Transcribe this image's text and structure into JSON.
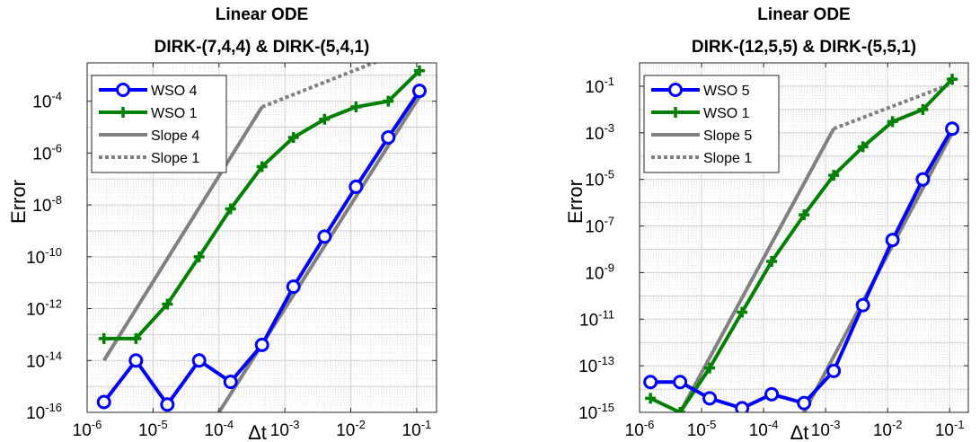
{
  "chart_data": [
    {
      "type": "line",
      "title": [
        "Linear ODE",
        "DIRK-(7,4,4) & DIRK-(5,4,1)"
      ],
      "xlabel": "Δt",
      "ylabel": "Error",
      "xscale": "log",
      "yscale": "log",
      "xlim": [
        1e-06,
        0.2
      ],
      "ylim": [
        1e-16,
        0.003
      ],
      "xticks": [
        1e-06,
        1e-05,
        0.0001,
        0.001,
        0.01,
        0.1
      ],
      "xtick_labels": [
        [
          "10",
          "-6"
        ],
        [
          "10",
          "-5"
        ],
        [
          "10",
          "-4"
        ],
        [
          "10",
          "-3"
        ],
        [
          "10",
          "-2"
        ],
        [
          "10",
          "-1"
        ]
      ],
      "yticks": [
        1e-16,
        1e-14,
        1e-12,
        1e-10,
        1e-08,
        1e-06,
        0.0001
      ],
      "ytick_labels": [
        [
          "10",
          "-16"
        ],
        [
          "10",
          "-14"
        ],
        [
          "10",
          "-12"
        ],
        [
          "10",
          "-10"
        ],
        [
          "10",
          "-8"
        ],
        [
          "10",
          "-6"
        ],
        [
          "10",
          "-4"
        ]
      ],
      "grid": true,
      "legend_position": "top-left",
      "series": [
        {
          "name": "WSO 4",
          "color": "#0000ff",
          "marker": "circle",
          "dash": "solid",
          "x": [
            1.8e-06,
            5.5e-06,
            1.65e-05,
            5e-05,
            0.00015,
            0.00045,
            0.00135,
            0.004,
            0.012,
            0.037,
            0.11
          ],
          "y": [
            2.5e-16,
            1e-14,
            2e-16,
            1e-14,
            1.5e-15,
            4e-14,
            7e-12,
            6e-10,
            5e-08,
            4e-06,
            0.00025
          ]
        },
        {
          "name": "WSO 1",
          "color": "#008000",
          "marker": "plus",
          "dash": "solid",
          "x": [
            1.8e-06,
            5.5e-06,
            1.65e-05,
            5e-05,
            0.00015,
            0.00045,
            0.00135,
            0.004,
            0.012,
            0.037,
            0.11
          ],
          "y": [
            7e-14,
            7e-14,
            1.5e-12,
            1e-10,
            7e-09,
            3e-07,
            4e-06,
            2e-05,
            6e-05,
            0.0001,
            0.0015
          ]
        },
        {
          "name": "Slope 4",
          "color": "#808080",
          "marker": "none",
          "dash": "solid",
          "segments": [
            {
              "x": [
                1.8e-06,
                0.00045
              ],
              "y": [
                1e-14,
                6e-05
              ]
            },
            {
              "x": [
                0.0001,
                0.11
              ],
              "y": [
                1e-16,
                0.00015
              ]
            }
          ]
        },
        {
          "name": "Slope 1",
          "color": "#808080",
          "marker": "none",
          "dash": "dot",
          "x": [
            0.00045,
            0.11
          ],
          "y": [
            6e-05,
            0.015
          ]
        }
      ]
    },
    {
      "type": "line",
      "title": [
        "Linear ODE",
        "DIRK-(12,5,5) & DIRK-(5,5,1)"
      ],
      "xlabel": "Δt",
      "ylabel": "Error",
      "xscale": "log",
      "yscale": "log",
      "xlim": [
        1e-06,
        0.2
      ],
      "ylim": [
        1e-15,
        1
      ],
      "xticks": [
        1e-06,
        1e-05,
        0.0001,
        0.001,
        0.01,
        0.1
      ],
      "xtick_labels": [
        [
          "10",
          "-6"
        ],
        [
          "10",
          "-5"
        ],
        [
          "10",
          "-4"
        ],
        [
          "10",
          "-3"
        ],
        [
          "10",
          "-2"
        ],
        [
          "10",
          "-1"
        ]
      ],
      "yticks": [
        1e-15,
        1e-13,
        1e-11,
        1e-09,
        1e-07,
        1e-05,
        0.001,
        0.1
      ],
      "ytick_labels": [
        [
          "10",
          "-15"
        ],
        [
          "10",
          "-13"
        ],
        [
          "10",
          "-11"
        ],
        [
          "10",
          "-9"
        ],
        [
          "10",
          "-7"
        ],
        [
          "10",
          "-5"
        ],
        [
          "10",
          "-3"
        ],
        [
          "10",
          "-1"
        ]
      ],
      "grid": true,
      "legend_position": "top-left",
      "series": [
        {
          "name": "WSO 5",
          "color": "#0000ff",
          "marker": "circle",
          "dash": "solid",
          "x": [
            1.5e-06,
            4.5e-06,
            1.35e-05,
            4.5e-05,
            0.000135,
            0.00045,
            0.00135,
            0.004,
            0.012,
            0.037,
            0.11
          ],
          "y": [
            2e-14,
            2e-14,
            4e-15,
            1.5e-15,
            6e-15,
            2.5e-15,
            6e-14,
            4e-11,
            2.5e-08,
            1e-05,
            0.0015
          ]
        },
        {
          "name": "WSO 1",
          "color": "#008000",
          "marker": "plus",
          "dash": "solid",
          "x": [
            1.5e-06,
            4.5e-06,
            1.35e-05,
            4.5e-05,
            0.000135,
            0.00045,
            0.00135,
            0.004,
            0.012,
            0.037,
            0.11
          ],
          "y": [
            4e-15,
            1e-15,
            8e-14,
            2e-11,
            3e-09,
            3e-07,
            1.5e-05,
            0.00025,
            0.003,
            0.01,
            0.2
          ]
        },
        {
          "name": "Slope 5",
          "color": "#808080",
          "marker": "none",
          "dash": "solid",
          "segments": [
            {
              "x": [
                4.5e-06,
                0.00135
              ],
              "y": [
                1e-15,
                0.0015
              ]
            },
            {
              "x": [
                0.00045,
                0.11
              ],
              "y": [
                1e-15,
                0.001
              ]
            }
          ]
        },
        {
          "name": "Slope 1",
          "color": "#808080",
          "marker": "none",
          "dash": "dot",
          "x": [
            0.00135,
            0.11
          ],
          "y": [
            0.0015,
            0.13
          ]
        }
      ]
    }
  ]
}
